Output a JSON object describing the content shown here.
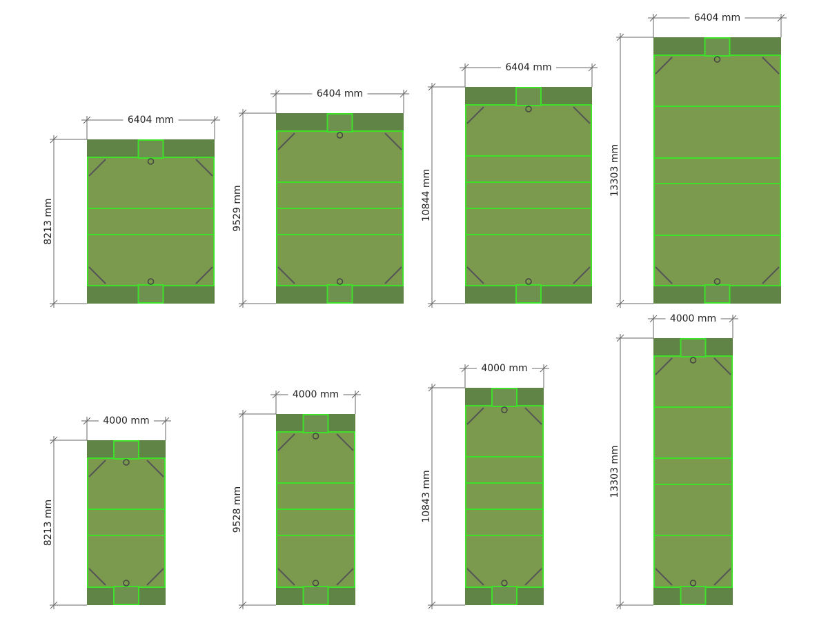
{
  "panels": [
    {
      "width": "6404 mm",
      "height": "8213 mm"
    },
    {
      "width": "6404 mm",
      "height": "9529 mm"
    },
    {
      "width": "6404 mm",
      "height": "10844 mm"
    },
    {
      "width": "6404 mm",
      "height": "13303 mm"
    },
    {
      "width": "4000 mm",
      "height": "8213 mm"
    },
    {
      "width": "4000 mm",
      "height": "9528 mm"
    },
    {
      "width": "4000 mm",
      "height": "10843 mm"
    },
    {
      "width": "4000 mm",
      "height": "13303 mm"
    }
  ]
}
